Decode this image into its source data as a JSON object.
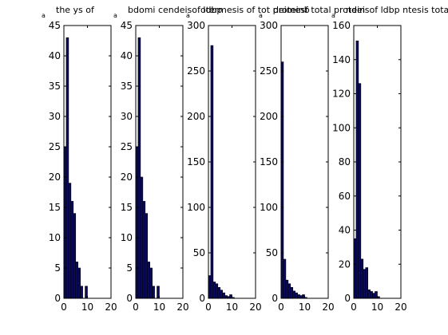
{
  "chart_data": [
    {
      "type": "bar",
      "title": "the ys of",
      "corner_label": "a",
      "xlim": [
        0,
        20
      ],
      "ylim": [
        0,
        45
      ],
      "xticks": [
        0,
        10,
        20
      ],
      "yticks": [
        0,
        5,
        10,
        15,
        20,
        25,
        30,
        35,
        40,
        45
      ],
      "bin_width": 1,
      "x": [
        0,
        1,
        2,
        3,
        4,
        5,
        6,
        7,
        8,
        9,
        10,
        11,
        12,
        13,
        14,
        15,
        16,
        17,
        18,
        19
      ],
      "values": [
        25,
        43,
        19,
        16,
        14,
        6,
        5,
        2,
        0,
        2,
        0,
        0,
        0,
        0,
        0,
        0,
        0,
        0,
        0,
        0
      ]
    },
    {
      "type": "bar",
      "title": "bdomi cendeisof ldbp",
      "corner_label": "a",
      "xlim": [
        0,
        20
      ],
      "ylim": [
        0,
        45
      ],
      "xticks": [
        0,
        10,
        20
      ],
      "yticks": [
        0,
        5,
        10,
        15,
        20,
        25,
        30,
        35,
        40,
        45
      ],
      "bin_width": 1,
      "x": [
        0,
        1,
        2,
        3,
        4,
        5,
        6,
        7,
        8,
        9,
        10,
        11,
        12,
        13,
        14,
        15,
        16,
        17,
        18,
        19
      ],
      "values": [
        25,
        43,
        20,
        16,
        14,
        6,
        5,
        2,
        0,
        2,
        0,
        0,
        0,
        0,
        0,
        0,
        0,
        0,
        0,
        0
      ]
    },
    {
      "type": "bar",
      "title": "otermesis of tot proteinb",
      "corner_label": "a",
      "xlim": [
        0,
        20
      ],
      "ylim": [
        0,
        300
      ],
      "xticks": [
        0,
        10,
        20
      ],
      "yticks": [
        0,
        50,
        100,
        150,
        200,
        250,
        300
      ],
      "bin_width": 1,
      "x": [
        0,
        1,
        2,
        3,
        4,
        5,
        6,
        7,
        8,
        9,
        10,
        11,
        12,
        13,
        14,
        15,
        16,
        17,
        18,
        19
      ],
      "values": [
        25,
        278,
        18,
        16,
        12,
        9,
        6,
        3,
        2,
        4,
        1,
        0,
        0,
        0,
        0,
        0,
        0,
        0,
        0,
        0
      ]
    },
    {
      "type": "bar",
      "title": "deimesf total protein",
      "corner_label": "a",
      "xlim": [
        0,
        20
      ],
      "ylim": [
        0,
        300
      ],
      "xticks": [
        0,
        10,
        20
      ],
      "yticks": [
        0,
        50,
        100,
        150,
        200,
        250,
        300
      ],
      "bin_width": 1,
      "x": [
        0,
        1,
        2,
        3,
        4,
        5,
        6,
        7,
        8,
        9,
        10,
        11,
        12,
        13,
        14,
        15,
        16,
        17,
        18,
        19
      ],
      "values": [
        260,
        43,
        20,
        16,
        12,
        8,
        6,
        4,
        3,
        4,
        1,
        0,
        0,
        0,
        0,
        0,
        0,
        0,
        0,
        0
      ]
    },
    {
      "type": "bar",
      "title": "ndeisof ldbp ntesis total prot",
      "corner_label": "a",
      "xlim": [
        0,
        20
      ],
      "ylim": [
        0,
        160
      ],
      "xticks": [
        0,
        10,
        20
      ],
      "yticks": [
        0,
        20,
        40,
        60,
        80,
        100,
        120,
        140,
        160
      ],
      "bin_width": 1,
      "x": [
        0,
        1,
        2,
        3,
        4,
        5,
        6,
        7,
        8,
        9,
        10,
        11,
        12,
        13,
        14,
        15,
        16,
        17,
        18,
        19
      ],
      "values": [
        35,
        151,
        126,
        23,
        17,
        18,
        5,
        4,
        3,
        4,
        1,
        0,
        0,
        0,
        0,
        0,
        0,
        0,
        0,
        0
      ]
    }
  ]
}
